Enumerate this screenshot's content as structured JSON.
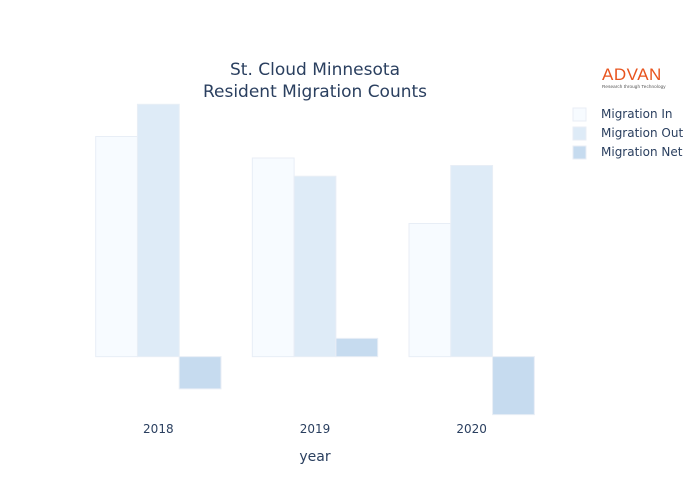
{
  "chart_data": {
    "type": "bar",
    "title_lines": [
      "St. Cloud Minnesota",
      "Resident Migration Counts"
    ],
    "xlabel": "year",
    "ylabel": "",
    "categories": [
      "2018",
      "2019",
      "2020"
    ],
    "series": [
      {
        "name": "Migration In",
        "values": [
          205,
          185,
          124
        ],
        "color": "#f7fbff"
      },
      {
        "name": "Migration Out",
        "values": [
          235,
          168,
          178
        ],
        "color": "#deebf7"
      },
      {
        "name": "Migration Net",
        "values": [
          -30,
          17,
          -54
        ],
        "color": "#c6dbef"
      }
    ],
    "ylim": [
      -59,
      239
    ],
    "grid": false,
    "y_tick_labels_visible": false,
    "legend_position": "right"
  },
  "logo": {
    "wordmark": "ADVAN",
    "tagline": "Research through Technology",
    "color": "#e8541e"
  }
}
